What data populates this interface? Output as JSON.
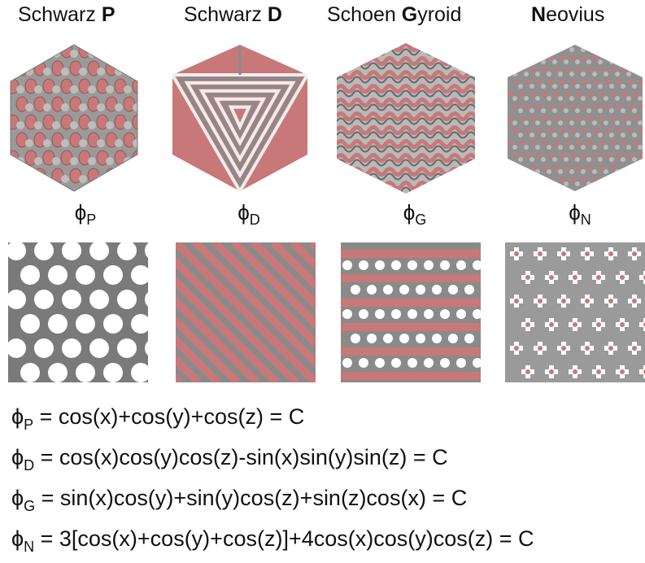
{
  "surfaces": [
    {
      "id": "P",
      "prefix": "Schwarz ",
      "bold": "P",
      "rest": "",
      "phi": "ϕ",
      "sub": "P"
    },
    {
      "id": "D",
      "prefix": "Schwarz ",
      "bold": "D",
      "rest": "",
      "phi": "ϕ",
      "sub": "D"
    },
    {
      "id": "G",
      "prefix": "Schoen ",
      "bold": "G",
      "rest": "yroid",
      "phi": "ϕ",
      "sub": "G"
    },
    {
      "id": "N",
      "prefix": "",
      "bold": "N",
      "rest": "eovius",
      "phi": "ϕ",
      "sub": "N"
    }
  ],
  "equations": [
    {
      "phi": "ϕ",
      "sub": "P",
      "text": " = cos(x)+cos(y)+cos(z) = C"
    },
    {
      "phi": "ϕ",
      "sub": "D",
      "text": " = cos(x)cos(y)cos(z)-sin(x)sin(y)sin(z) = C"
    },
    {
      "phi": "ϕ",
      "sub": "G",
      "text": " = sin(x)cos(y)+sin(y)cos(z)+sin(z)cos(x) = C"
    },
    {
      "phi": "ϕ",
      "sub": "N",
      "text": " = 3[cos(x)+cos(y)+cos(z)]+4cos(x)cos(y)cos(z) = C"
    }
  ],
  "colors": {
    "gray": "#8a8a8a",
    "dark_gray": "#6a6a6a",
    "pink": "#c87878",
    "dark_pink": "#9a5454"
  }
}
